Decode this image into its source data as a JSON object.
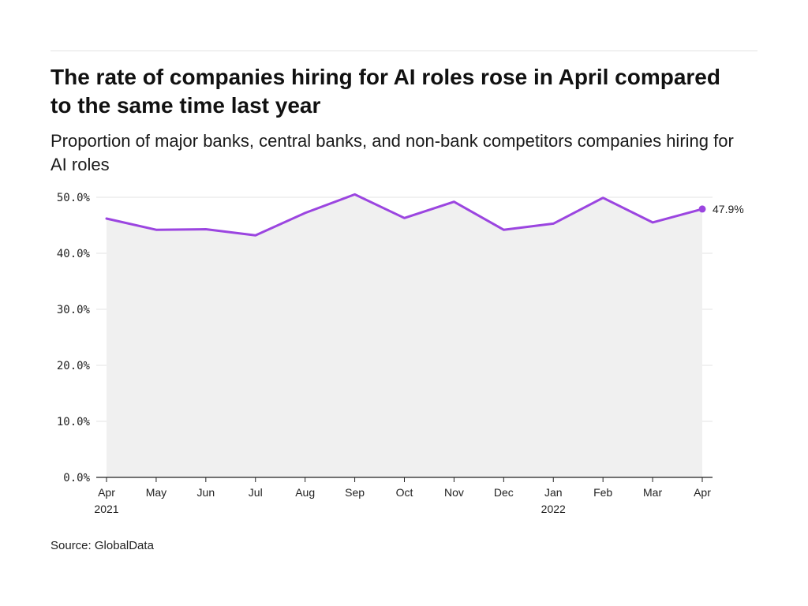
{
  "title": "The rate of companies hiring for AI roles rose in April compared to the same time last year",
  "subtitle": "Proportion of major banks, central banks, and non-bank competitors companies hiring for AI roles",
  "source": "Source: GlobalData",
  "colors": {
    "line": "#9b45e0",
    "area": "#f0f0f0",
    "grid": "#e3e3e3",
    "axis": "#222222"
  },
  "chart_data": {
    "type": "area",
    "x": [
      "Apr",
      "May",
      "Jun",
      "Jul",
      "Aug",
      "Sep",
      "Oct",
      "Nov",
      "Dec",
      "Jan",
      "Feb",
      "Mar",
      "Apr"
    ],
    "x_year_labels": [
      "2021",
      "",
      "",
      "",
      "",
      "",
      "",
      "",
      "",
      "2022",
      "",
      "",
      ""
    ],
    "series": [
      {
        "values": [
          46.2,
          44.2,
          44.3,
          43.2,
          47.2,
          50.5,
          46.3,
          49.2,
          44.2,
          45.3,
          49.9,
          45.5,
          47.9
        ]
      }
    ],
    "end_label": "47.9%",
    "yticks": [
      0,
      10,
      20,
      30,
      40,
      50
    ],
    "ytick_labels": [
      "0.0%",
      "10.0%",
      "20.0%",
      "30.0%",
      "40.0%",
      "50.0%"
    ],
    "ylim": [
      0,
      50
    ],
    "grid": true
  }
}
